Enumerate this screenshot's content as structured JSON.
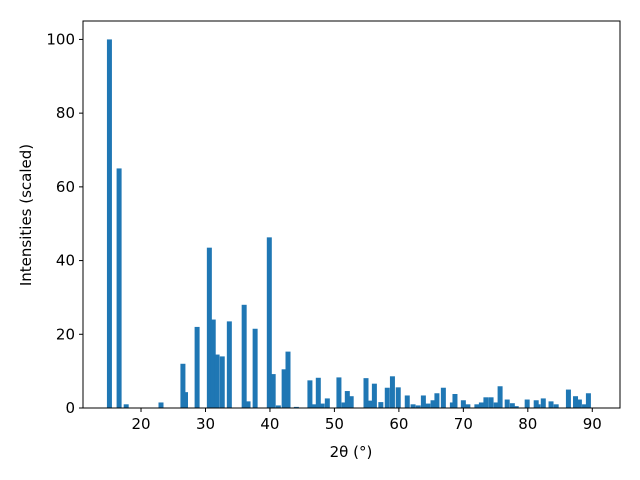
{
  "chart_data": {
    "type": "bar",
    "xlabel": "2θ (°)",
    "ylabel": "Intensities (scaled)",
    "color": "#1f77b4",
    "xlim": [
      11,
      94.3
    ],
    "ylim": [
      0,
      105
    ],
    "xticks": [
      20,
      30,
      40,
      50,
      60,
      70,
      80,
      90
    ],
    "yticks": [
      0,
      20,
      40,
      60,
      80,
      100
    ],
    "x": [
      15.1,
      16.6,
      17.7,
      23.1,
      26.5,
      26.9,
      28.7,
      30.6,
      31.2,
      31.8,
      32.6,
      33.7,
      36.0,
      36.6,
      37.7,
      39.9,
      40.5,
      41.3,
      42.2,
      42.8,
      44.1,
      46.2,
      46.8,
      47.5,
      48.1,
      48.9,
      50.7,
      51.5,
      52.0,
      52.6,
      54.9,
      55.5,
      56.2,
      57.2,
      58.2,
      59.0,
      59.9,
      61.3,
      62.2,
      63.0,
      63.8,
      64.5,
      65.3,
      65.9,
      66.9,
      68.3,
      68.7,
      70.0,
      70.7,
      72.1,
      72.8,
      73.5,
      74.3,
      75.1,
      75.7,
      76.8,
      77.6,
      78.2,
      79.9,
      81.3,
      81.6,
      82.4,
      83.6,
      84.4,
      86.3,
      87.4,
      88.0,
      88.8,
      89.4
    ],
    "values": [
      100,
      65,
      1,
      1.5,
      12,
      4.3,
      22,
      43.5,
      24,
      14.5,
      14,
      23.5,
      28,
      1.8,
      21.5,
      46.3,
      9.2,
      0.7,
      10.5,
      15.3,
      0.3,
      7.5,
      1,
      8.2,
      1.2,
      2.6,
      8.3,
      1.5,
      4.6,
      3.2,
      8.1,
      2,
      6.6,
      1.6,
      5.5,
      8.6,
      5.6,
      3.4,
      1,
      0.7,
      3.4,
      1.2,
      2.1,
      4,
      5.5,
      1.5,
      3.8,
      2.1,
      1,
      1,
      1.5,
      2.9,
      2.9,
      1.5,
      5.9,
      2.3,
      1.3,
      0.5,
      2.3,
      2.1,
      1,
      2.6,
      1.8,
      1,
      5,
      3.2,
      2.3,
      1,
      4
    ]
  }
}
